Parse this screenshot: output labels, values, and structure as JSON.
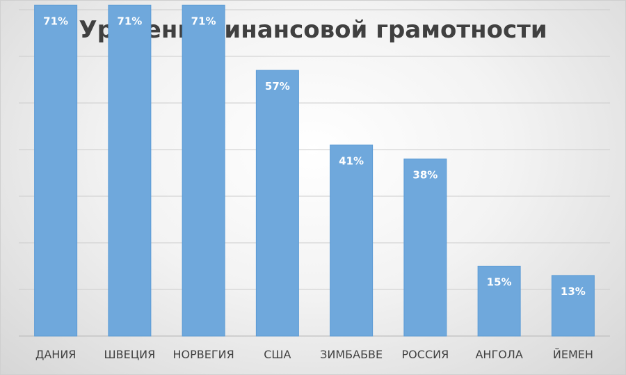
{
  "chart_data": {
    "type": "bar",
    "title": "Уровень финансовой грамотности",
    "categories": [
      "ДАНИЯ",
      "ШВЕЦИЯ",
      "НОРВЕГИЯ",
      "США",
      "ЗИМБАБВЕ",
      "РОССИЯ",
      "АНГОЛА",
      "ЙЕМЕН"
    ],
    "values": [
      71,
      71,
      71,
      57,
      41,
      38,
      15,
      13
    ],
    "data_labels": [
      "71%",
      "71%",
      "71%",
      "57%",
      "41%",
      "38%",
      "15%",
      "13%"
    ],
    "xlabel": "",
    "ylabel": "",
    "ylim": [
      0,
      80
    ],
    "y_axis_visible": false,
    "grid": true,
    "grid_step": 10,
    "legend": "none",
    "colors": {
      "bar": "#6fa8dc",
      "bar_edge": "#5b9bd5",
      "label": "#ffffff",
      "title": "#404040"
    }
  }
}
